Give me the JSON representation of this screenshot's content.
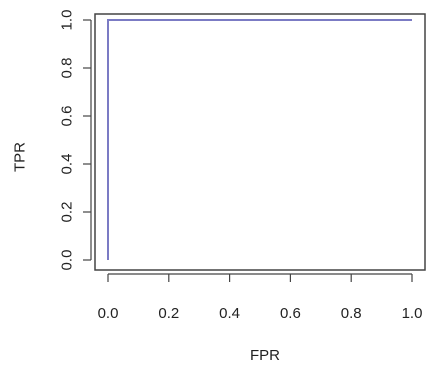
{
  "chart_data": {
    "type": "line",
    "title": "",
    "xlabel": "FPR",
    "ylabel": "TPR",
    "xlim": [
      0,
      1
    ],
    "ylim": [
      0,
      1
    ],
    "x_ticks": [
      0.0,
      0.2,
      0.4,
      0.6,
      0.8,
      1.0
    ],
    "x_tick_labels": [
      "0.0",
      "0.2",
      "0.4",
      "0.6",
      "0.8",
      "1.0"
    ],
    "y_ticks": [
      0.0,
      0.2,
      0.4,
      0.6,
      0.8,
      1.0
    ],
    "y_tick_labels": [
      "0.0",
      "0.2",
      "0.4",
      "0.6",
      "0.8",
      "1.0"
    ],
    "grid": false,
    "legend": "none",
    "series": [
      {
        "color": "#7b7bc4",
        "points": [
          {
            "x": 0.0,
            "y": 0.0
          },
          {
            "x": 0.0,
            "y": 1.0
          },
          {
            "x": 1.0,
            "y": 1.0
          }
        ]
      }
    ]
  }
}
